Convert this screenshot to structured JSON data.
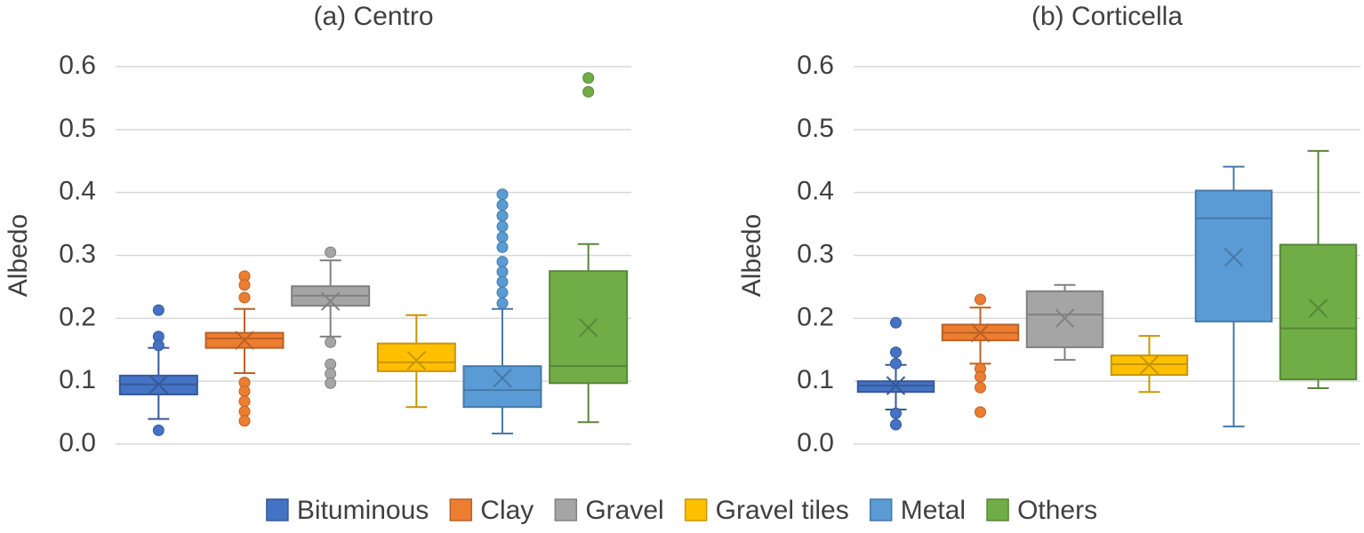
{
  "chart_data": [
    {
      "type": "box",
      "title": "(a) Centro",
      "y_label": "Albedo",
      "ylim": [
        0,
        0.6
      ],
      "yticks": [
        {
          "value": 0,
          "label": "0.0"
        },
        0.1,
        0.2,
        0.3,
        0.4,
        0.5,
        0.6
      ],
      "grid": true,
      "series": [
        {
          "name": "Bituminous",
          "color": "#4472c4",
          "min": 0.04,
          "q1": 0.079,
          "median": 0.095,
          "q3": 0.109,
          "max": 0.153,
          "mean": 0.095,
          "outliers": [
            0.213,
            0.171,
            0.157,
            0.022
          ]
        },
        {
          "name": "Clay",
          "color": "#ed7d31",
          "min": 0.113,
          "q1": 0.153,
          "median": 0.168,
          "q3": 0.177,
          "max": 0.215,
          "mean": 0.165,
          "outliers": [
            0.267,
            0.253,
            0.233,
            0.098,
            0.084,
            0.068,
            0.052,
            0.037
          ]
        },
        {
          "name": "Gravel",
          "color": "#a5a5a5",
          "min": 0.171,
          "q1": 0.22,
          "median": 0.236,
          "q3": 0.251,
          "max": 0.292,
          "mean": 0.227,
          "outliers": [
            0.305,
            0.162,
            0.127,
            0.112,
            0.097
          ]
        },
        {
          "name": "Gravel tiles",
          "color": "#ffc000",
          "min": 0.059,
          "q1": 0.116,
          "median": 0.13,
          "q3": 0.16,
          "max": 0.205,
          "mean": 0.133,
          "outliers": []
        },
        {
          "name": "Metal",
          "color": "#5b9bd5",
          "min": 0.017,
          "q1": 0.059,
          "median": 0.086,
          "q3": 0.124,
          "max": 0.215,
          "mean": 0.105,
          "outliers": [
            0.397,
            0.38,
            0.363,
            0.346,
            0.329,
            0.313,
            0.29,
            0.274,
            0.258,
            0.241,
            0.224
          ]
        },
        {
          "name": "Others",
          "color": "#70ad47",
          "min": 0.035,
          "q1": 0.097,
          "median": 0.124,
          "q3": 0.275,
          "max": 0.318,
          "mean": 0.185,
          "outliers": [
            0.582,
            0.56
          ]
        }
      ]
    },
    {
      "type": "box",
      "title": "(b) Corticella",
      "y_label": "Albedo",
      "ylim": [
        0,
        0.6
      ],
      "yticks": [
        {
          "value": 0,
          "label": "0.0"
        },
        0.1,
        0.2,
        0.3,
        0.4,
        0.5,
        0.6
      ],
      "grid": true,
      "series": [
        {
          "name": "Bituminous",
          "color": "#4472c4",
          "min": 0.055,
          "q1": 0.083,
          "median": 0.093,
          "q3": 0.1,
          "max": 0.126,
          "mean": 0.093,
          "outliers": [
            0.193,
            0.146,
            0.128,
            0.049,
            0.031
          ]
        },
        {
          "name": "Clay",
          "color": "#ed7d31",
          "min": 0.128,
          "q1": 0.165,
          "median": 0.177,
          "q3": 0.19,
          "max": 0.217,
          "mean": 0.177,
          "outliers": [
            0.23,
            0.12,
            0.107,
            0.09,
            0.051
          ]
        },
        {
          "name": "Gravel",
          "color": "#a5a5a5",
          "min": 0.134,
          "q1": 0.154,
          "median": 0.206,
          "q3": 0.243,
          "max": 0.253,
          "mean": 0.2,
          "outliers": []
        },
        {
          "name": "Gravel tiles",
          "color": "#ffc000",
          "min": 0.083,
          "q1": 0.11,
          "median": 0.127,
          "q3": 0.141,
          "max": 0.172,
          "mean": 0.126,
          "outliers": []
        },
        {
          "name": "Metal",
          "color": "#5b9bd5",
          "min": 0.028,
          "q1": 0.195,
          "median": 0.359,
          "q3": 0.403,
          "max": 0.441,
          "mean": 0.297,
          "outliers": []
        },
        {
          "name": "Others",
          "color": "#70ad47",
          "min": 0.089,
          "q1": 0.103,
          "median": 0.184,
          "q3": 0.317,
          "max": 0.466,
          "mean": 0.216,
          "outliers": []
        }
      ]
    }
  ]
}
